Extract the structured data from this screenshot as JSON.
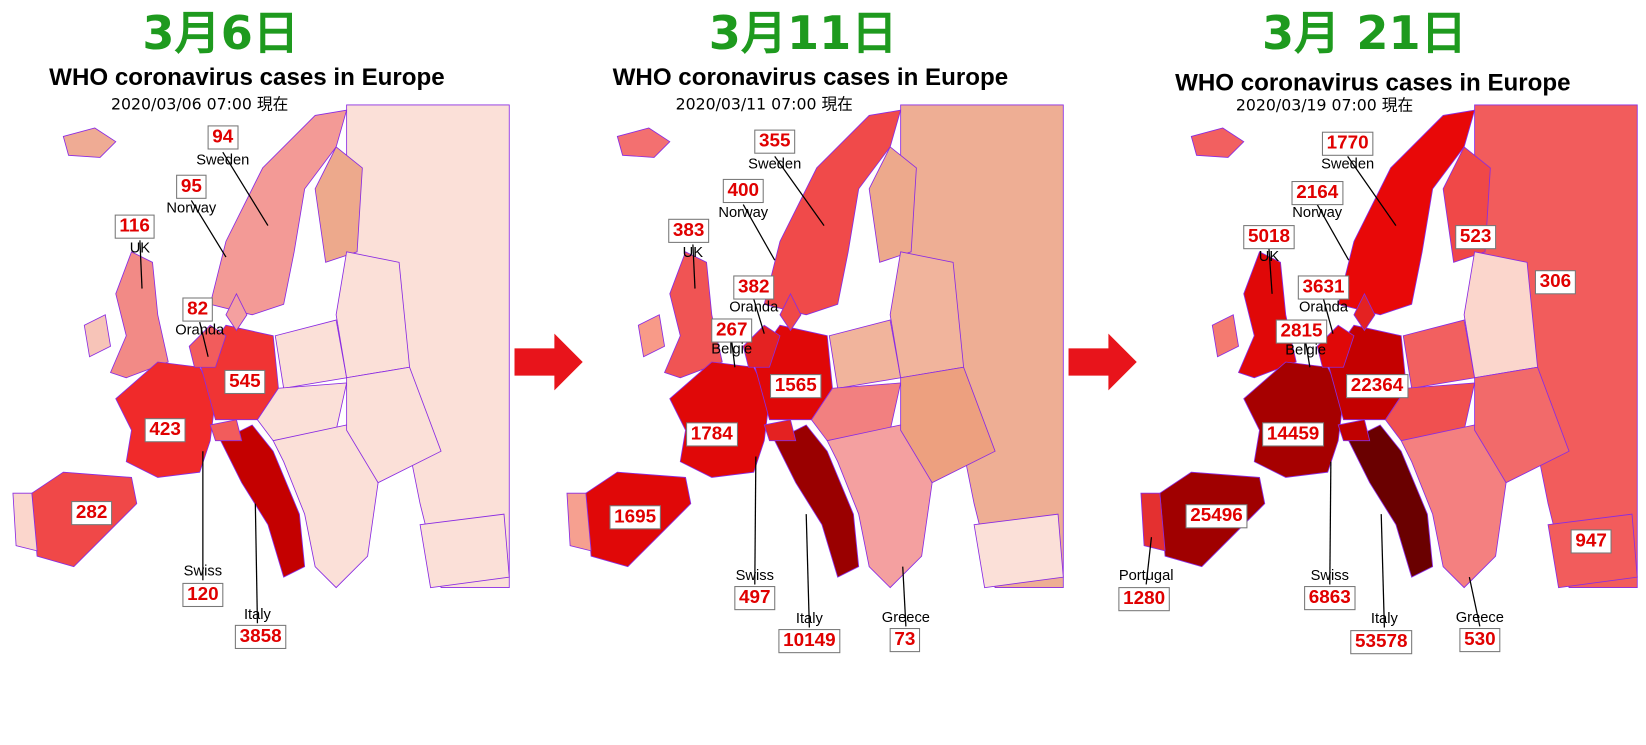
{
  "panels": [
    {
      "date": "3月6日",
      "heading": "WHO coronavirus cases in Europe",
      "timestamp": "2020/03/06 07:00 現在",
      "labels": [
        {
          "name": "Sweden",
          "value": 94
        },
        {
          "name": "Norway",
          "value": 95
        },
        {
          "name": "UK",
          "value": 116
        },
        {
          "name": "Oranda",
          "value": 82
        },
        {
          "value": 545
        },
        {
          "value": 423
        },
        {
          "value": 282
        },
        {
          "name": "Swiss",
          "value": 120
        },
        {
          "name": "Italy",
          "value": 3858
        }
      ]
    },
    {
      "date": "3月11日",
      "heading": "WHO coronavirus cases in Europe",
      "timestamp": "2020/03/11 07:00 現在",
      "labels": [
        {
          "name": "Sweden",
          "value": 355
        },
        {
          "name": "Norway",
          "value": 400
        },
        {
          "name": "UK",
          "value": 383
        },
        {
          "name": "Oranda",
          "value": 382
        },
        {
          "name": "Belgie",
          "value": 267
        },
        {
          "value": 1565
        },
        {
          "value": 1784
        },
        {
          "value": 1695
        },
        {
          "name": "Swiss",
          "value": 497
        },
        {
          "name": "Italy",
          "value": 10149
        },
        {
          "name": "Greece",
          "value": 73
        }
      ]
    },
    {
      "date": "3月 21日",
      "heading": "WHO coronavirus cases in Europe",
      "timestamp": "2020/03/19 07:00 現在",
      "labels": [
        {
          "name": "Sweden",
          "value": 1770
        },
        {
          "name": "Norway",
          "value": 2164
        },
        {
          "name": "UK",
          "value": 5018
        },
        {
          "name": "Oranda",
          "value": 3631
        },
        {
          "name": "Belgie",
          "value": 2815
        },
        {
          "value": 523
        },
        {
          "value": 306
        },
        {
          "value": 22364
        },
        {
          "value": 14459
        },
        {
          "value": 25496
        },
        {
          "value": 947
        },
        {
          "name": "Portugal",
          "value": 1280
        },
        {
          "name": "Swiss",
          "value": 6863
        },
        {
          "name": "Italy",
          "value": 53578
        },
        {
          "name": "Greece",
          "value": 530
        }
      ]
    }
  ]
}
